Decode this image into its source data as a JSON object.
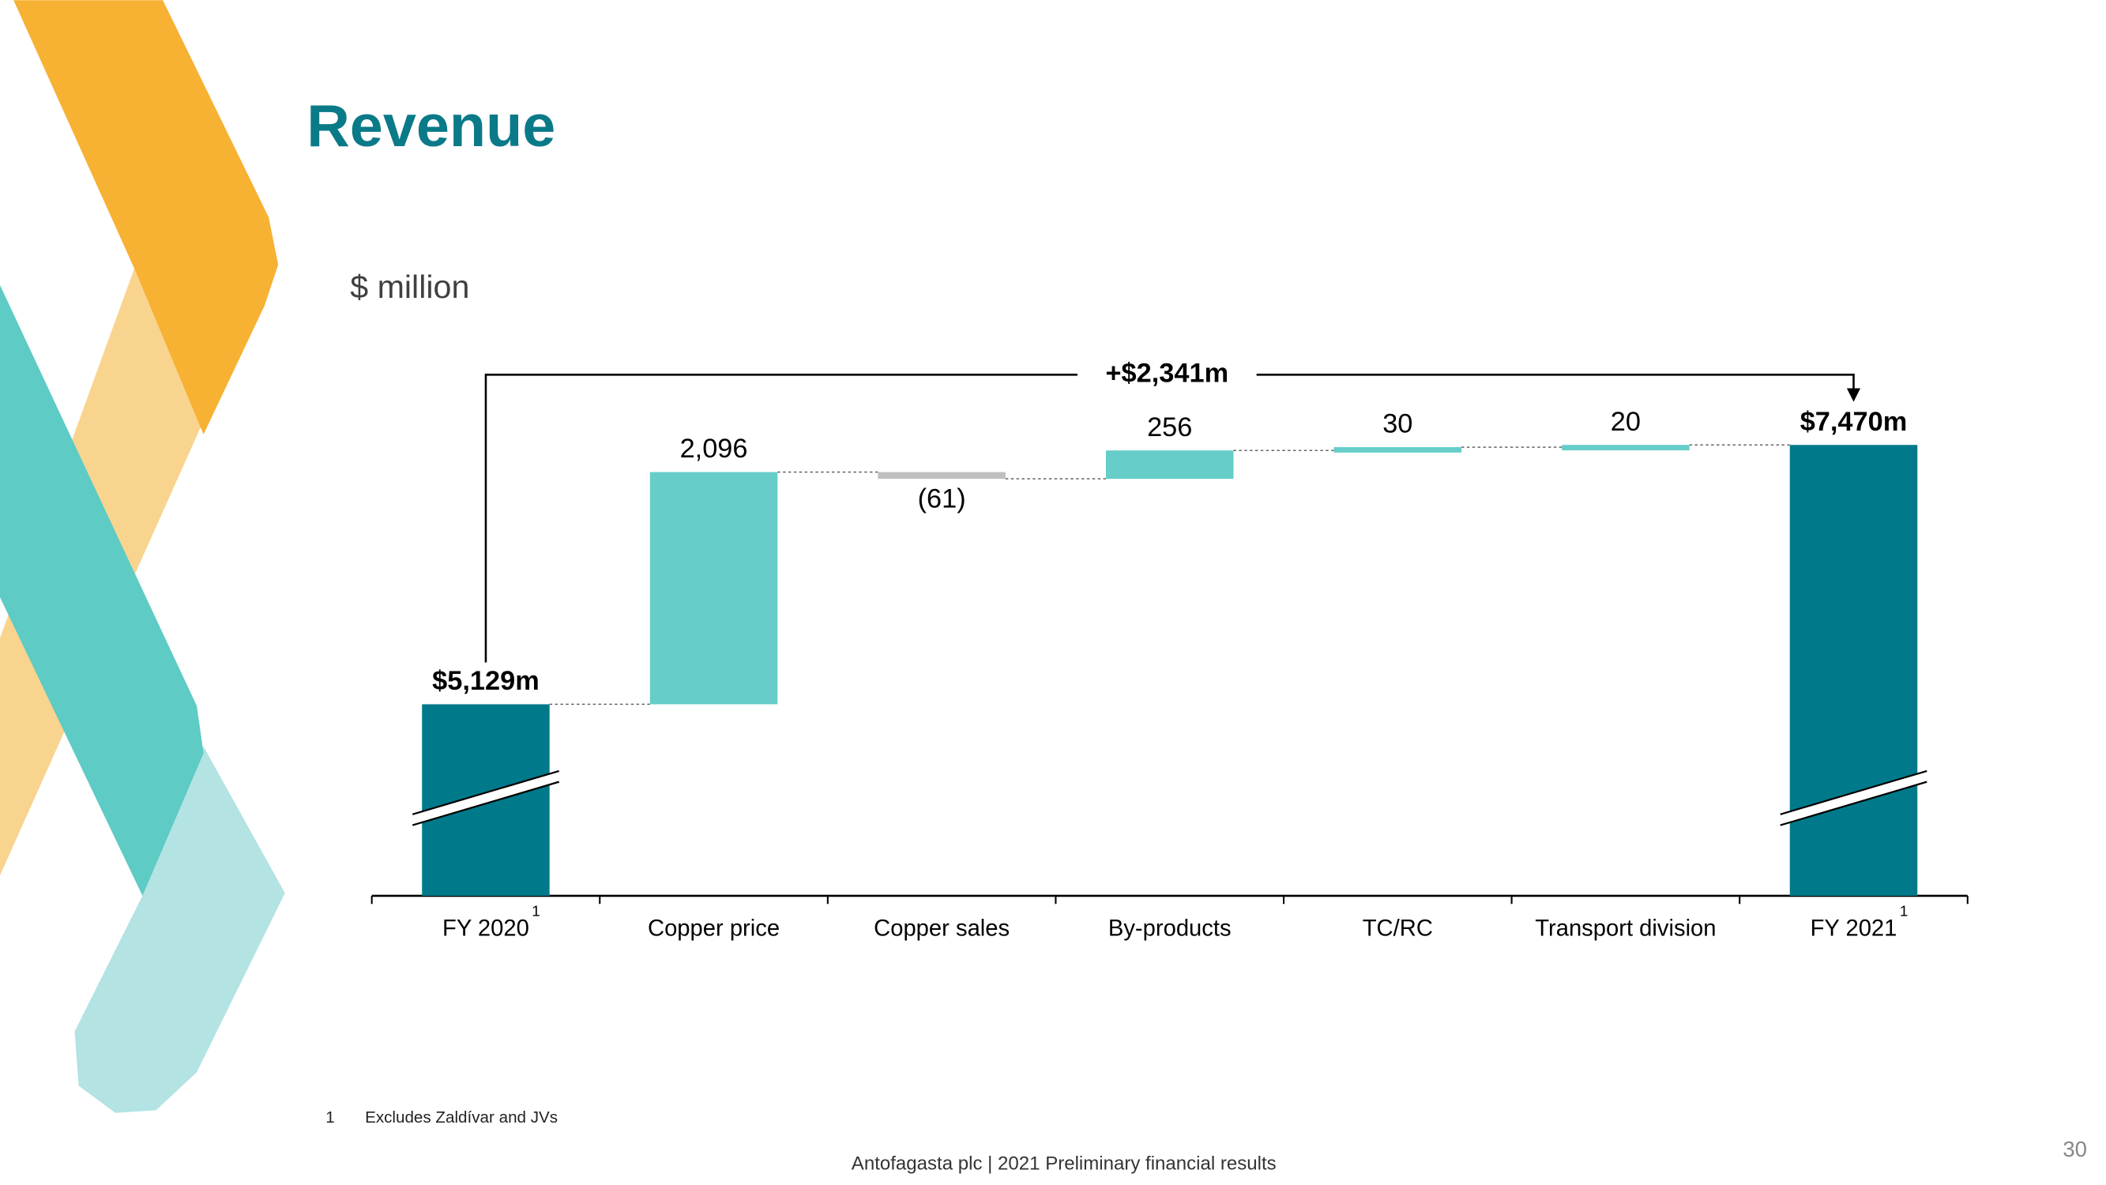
{
  "chart_data": {
    "type": "waterfall",
    "title": "Revenue",
    "subtitle": "$ million",
    "categories": [
      "FY 2020",
      "Copper price",
      "Copper sales",
      "By-products",
      "TC/RC",
      "Transport division",
      "FY 2021"
    ],
    "category_notes": [
      "1",
      null,
      null,
      null,
      null,
      null,
      "1"
    ],
    "values": [
      5129,
      2096,
      -61,
      256,
      30,
      20,
      7470
    ],
    "value_labels": [
      "$5,129m",
      "2,096",
      "(61)",
      "256",
      "30",
      "20",
      "$7,470m"
    ],
    "measure": [
      "absolute",
      "relative",
      "relative",
      "relative",
      "relative",
      "relative",
      "absolute"
    ],
    "total_color": "#007a8a",
    "increase_color": "#66cdc8",
    "decrease_color": "#bfbfbf",
    "ylim": [
      3400,
      8300
    ],
    "annotation": "+$2,341m",
    "footnote": {
      "marker": "1",
      "text": "Excludes Zaldívar and JVs"
    },
    "footer": "Antofagasta plc | 2021 Preliminary financial results",
    "page_number": "30"
  }
}
